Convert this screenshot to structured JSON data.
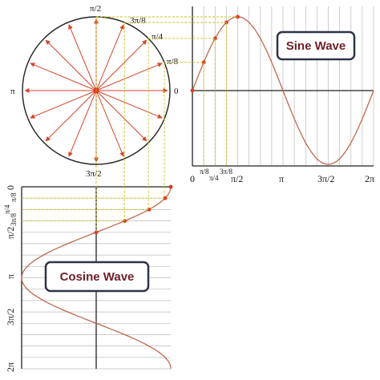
{
  "circle_labels": {
    "top": "π/2",
    "top_right": "3π/8",
    "upper_right": "π/4",
    "right_upper": "π/8",
    "right": "0",
    "left": "π",
    "bottom": "3π/2"
  },
  "sine": {
    "title": "Sine Wave",
    "ticks": [
      "0",
      "π/8",
      "π/4",
      "3π/8",
      "π/2",
      "π",
      "3π/2",
      "2π"
    ]
  },
  "cosine": {
    "title": "Cosine Wave",
    "ticks": [
      "0",
      "π/8",
      "π/4",
      "3π/8",
      "π/2",
      "π",
      "3π/2",
      "2π"
    ]
  },
  "colors": {
    "curve": "#c0694f",
    "arrow": "#d2452a",
    "dot": "#e0361f",
    "guide": "#c8c020",
    "grid": "#bbbbbb",
    "box_border": "#2e3447",
    "box_text": "#6e1f26"
  }
}
